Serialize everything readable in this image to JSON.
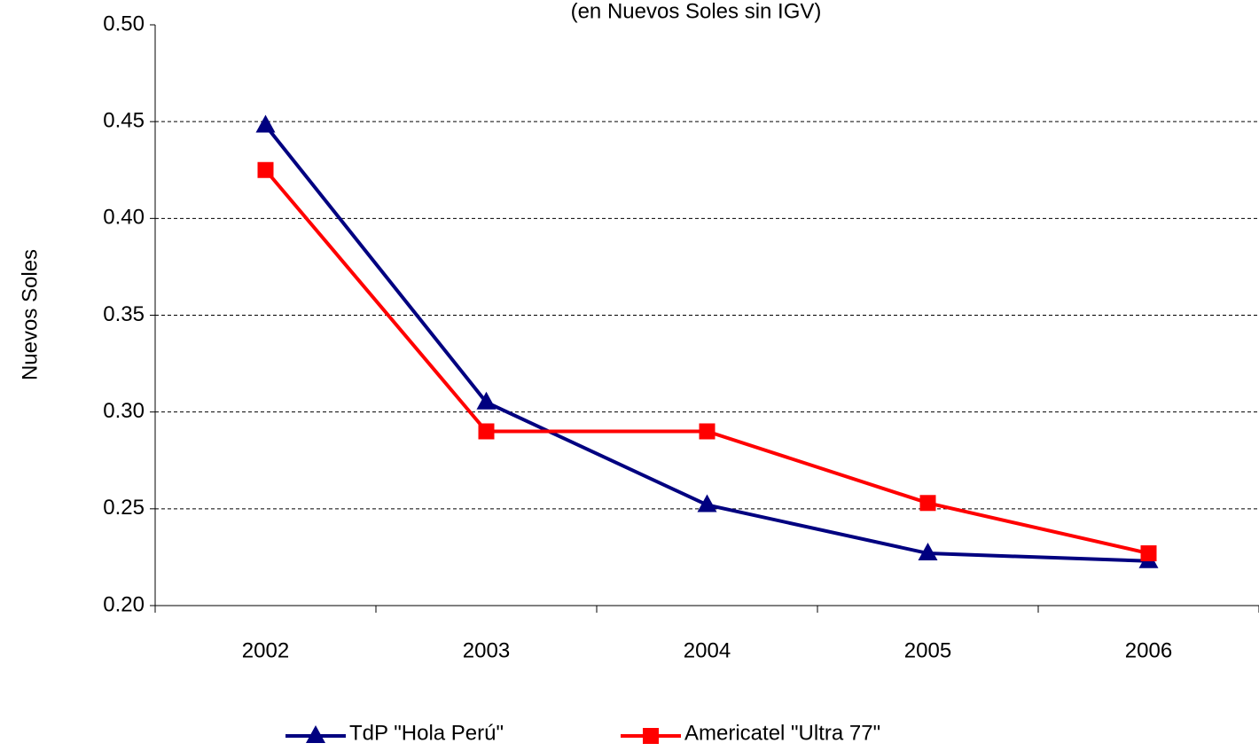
{
  "chart_data": {
    "type": "line",
    "subtitle": "(en Nuevos Soles sin IGV)",
    "y_label": "Nuevos Soles",
    "categories": [
      "2002",
      "2003",
      "2004",
      "2005",
      "2006"
    ],
    "series": [
      {
        "name": "TdP \"Hola Perú\"",
        "color": "#000080",
        "marker": "triangle",
        "values": [
          0.448,
          0.305,
          0.252,
          0.227,
          0.223
        ]
      },
      {
        "name": "Americatel \"Ultra 77\"",
        "color": "#ff0000",
        "marker": "square",
        "values": [
          0.425,
          0.29,
          0.29,
          0.253,
          0.227
        ]
      }
    ],
    "ylim": [
      0.2,
      0.5
    ],
    "yticks": [
      {
        "value": 0.2,
        "label": "0.20"
      },
      {
        "value": 0.25,
        "label": "0.25"
      },
      {
        "value": 0.3,
        "label": "0.30"
      },
      {
        "value": 0.35,
        "label": "0.35"
      },
      {
        "value": 0.4,
        "label": "0.40"
      },
      {
        "value": 0.45,
        "label": "0.45"
      },
      {
        "value": 0.5,
        "label": "0.50"
      }
    ],
    "grid": true,
    "legend": "bottom"
  }
}
